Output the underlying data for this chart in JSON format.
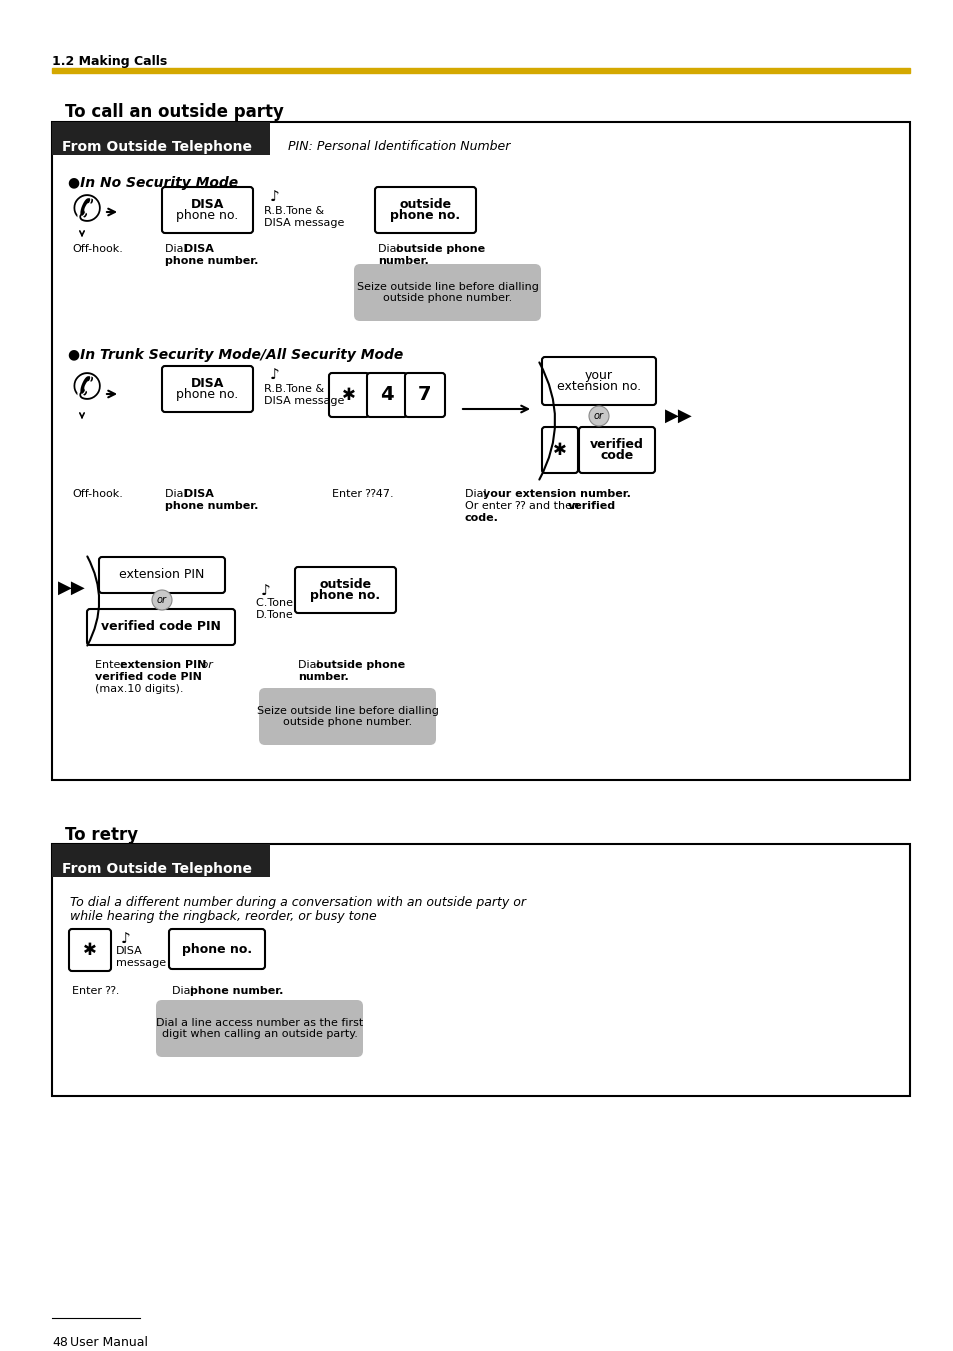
{
  "page_header": "1.2 Making Calls",
  "header_line_color": "#D4A800",
  "section1_title": "To call an outside party",
  "section2_title": "To retry",
  "box1_header": "From Outside Telephone",
  "box1_pin_label": "PIN: Personal Identification Number",
  "box2_header": "From Outside Telephone",
  "mode1_title": "●In No Security Mode",
  "mode2_title": "●In Trunk Security Mode/All Security Mode",
  "retry_line1": "To dial a different number during a conversation with an outside party or",
  "retry_line2": "while hearing the ringback, reorder, or busy tone",
  "footer_page": "48",
  "footer_text": "User Manual",
  "bg": "#ffffff",
  "header_bar_color": "#222222",
  "header_text_color": "#ffffff",
  "gold_color": "#D4A800",
  "bubble_color": "#b8b8b8",
  "box_border": "#000000"
}
